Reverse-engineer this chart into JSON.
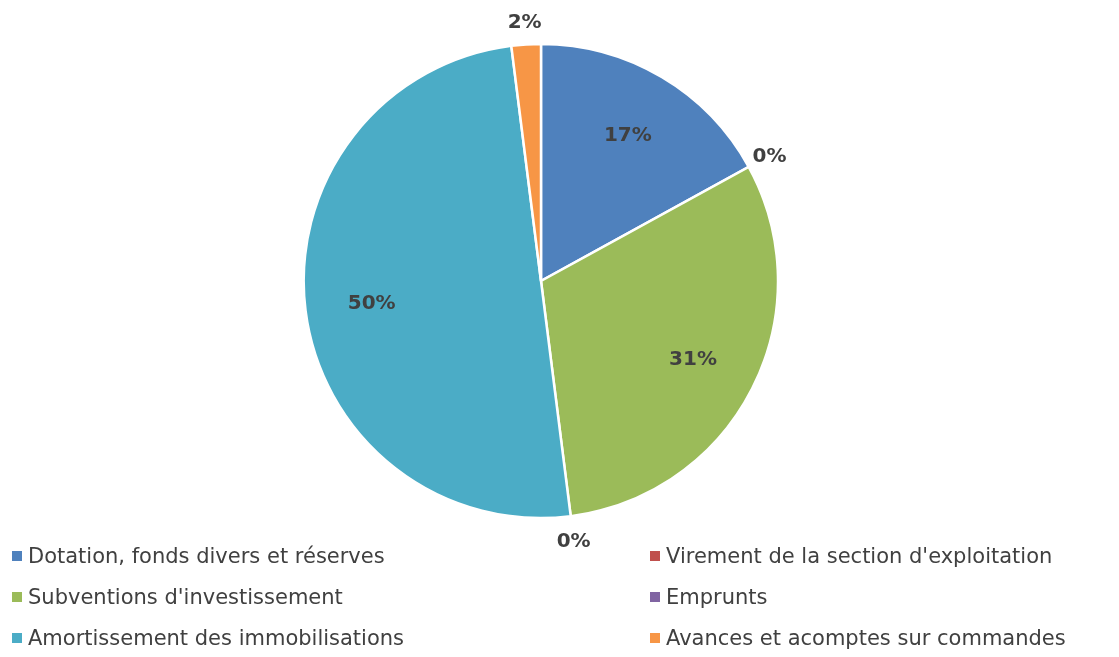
{
  "chart_data": {
    "type": "pie",
    "categories": [
      "Dotation, fonds divers et réserves",
      "Virement de la section d'exploitation",
      "Subventions d'investissement",
      "Emprunts",
      "Amortissement des immobilisations",
      "Avances et acomptes sur commandes"
    ],
    "values": [
      17,
      0,
      31,
      0,
      50,
      2
    ],
    "colors": [
      "#4f81bd",
      "#c0504d",
      "#9bbb59",
      "#8064a2",
      "#4bacc6",
      "#f79646"
    ],
    "value_labels": [
      "17%",
      "0%",
      "31%",
      "0%",
      "50%",
      "2%"
    ],
    "legend": "bottom"
  }
}
